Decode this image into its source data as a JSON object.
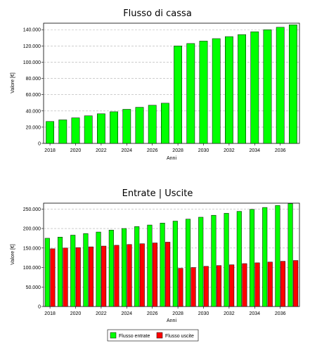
{
  "chart_data": [
    {
      "type": "bar",
      "title": "Flusso di cassa",
      "xlabel": "Anni",
      "ylabel": "Valore [€]",
      "categories": [
        "2018",
        "2019",
        "2020",
        "2021",
        "2022",
        "2023",
        "2024",
        "2025",
        "2026",
        "2027",
        "2028",
        "2029",
        "2030",
        "2031",
        "2032",
        "2033",
        "2034",
        "2035",
        "2036",
        "2037"
      ],
      "x_tick_labels": [
        "2018",
        "2020",
        "2022",
        "2024",
        "2026",
        "2028",
        "2030",
        "2032",
        "2034",
        "2036"
      ],
      "y_tick_labels": [
        "0",
        "20.000",
        "40.000",
        "60.000",
        "80.000",
        "100.000",
        "120.000",
        "140.000"
      ],
      "ylim": [
        0,
        148000
      ],
      "grid": true,
      "series": [
        {
          "values": [
            27000,
            29000,
            31500,
            34000,
            36500,
            39000,
            42000,
            44500,
            47000,
            49500,
            120000,
            123000,
            126000,
            129000,
            131500,
            134000,
            137500,
            140000,
            143000,
            146000
          ],
          "color": "#00ff00"
        }
      ]
    },
    {
      "type": "bar",
      "title": "Entrate | Uscite",
      "xlabel": "Anni",
      "ylabel": "Valore [€]",
      "categories": [
        "2018",
        "2019",
        "2020",
        "2021",
        "2022",
        "2023",
        "2024",
        "2025",
        "2026",
        "2027",
        "2028",
        "2029",
        "2030",
        "2031",
        "2032",
        "2033",
        "2034",
        "2035",
        "2036",
        "2037"
      ],
      "x_tick_labels": [
        "2018",
        "2020",
        "2022",
        "2024",
        "2026",
        "2028",
        "2030",
        "2032",
        "2034",
        "2036"
      ],
      "y_tick_labels": [
        "0",
        "50.000",
        "100.000",
        "150.000",
        "200.000",
        "250.000"
      ],
      "ylim": [
        0,
        265000
      ],
      "grid": true,
      "legend": "bottom",
      "series": [
        {
          "name": "Flusso entrate",
          "color": "#00ff00",
          "values": [
            175000,
            178000,
            183000,
            187000,
            191000,
            196000,
            200000,
            205000,
            209000,
            214000,
            219000,
            224000,
            229000,
            234000,
            239000,
            244000,
            249000,
            254000,
            259000,
            264000
          ]
        },
        {
          "name": "Flusso uscite",
          "color": "#ff0000",
          "values": [
            148000,
            150000,
            151000,
            153000,
            155000,
            157000,
            159000,
            161000,
            163000,
            165000,
            98000,
            100000,
            103000,
            105000,
            107000,
            110000,
            112000,
            114000,
            116000,
            118000
          ]
        }
      ]
    }
  ]
}
